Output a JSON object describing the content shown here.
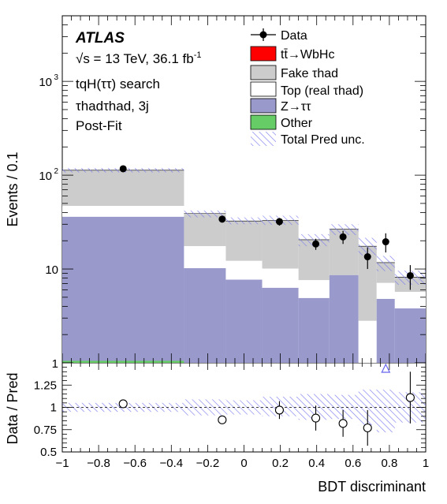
{
  "chart_data": {
    "type": "histogram",
    "experiment": "ATLAS",
    "energy_label": "√s = 13 TeV, 36.1 fb",
    "lumi_exponent": "-1",
    "analysis": "tqH(ττ) search",
    "channel": "τhadτhad, 3j",
    "fit_label": "Post-Fit",
    "ylabel": "Events / 0.1",
    "ratio_ylabel": "Data / Pred",
    "xlabel": "BDT discriminant",
    "ylim": [
      1,
      5000
    ],
    "y_log": true,
    "ratio_ylim": [
      0.5,
      1.5
    ],
    "xlim": [
      -1,
      1
    ],
    "x_ticks": [
      "−1",
      "−0.8",
      "−0.6",
      "−0.4",
      "−0.2",
      "0",
      "0.2",
      "0.4",
      "0.6",
      "0.8",
      "1"
    ],
    "y_ticks": [
      {
        "v": 1,
        "b": "1",
        "e": ""
      },
      {
        "v": 10,
        "b": "10",
        "e": ""
      },
      {
        "v": 100,
        "b": "10",
        "e": "2"
      },
      {
        "v": 1000,
        "b": "10",
        "e": "3"
      }
    ],
    "ratio_ticks": [
      "0.5",
      "0.75",
      "1",
      "1.25"
    ],
    "legend": {
      "data": "Data",
      "signal": "tt̄→WbHc",
      "fake": "Fake τhad",
      "top": "Top (real τhad)",
      "ztt": "Z→ττ",
      "other": "Other",
      "unc": "Total Pred unc."
    },
    "colors": {
      "signal": "#ff0000",
      "fake": "#cccccc",
      "top": "#ffffff",
      "ztt": "#9999cc",
      "other": "#66cc66",
      "unc": "#7777ee"
    },
    "bins": [
      {
        "lo": -1.0,
        "hi": -0.33,
        "other": 1.05,
        "ztt": 36,
        "top": 47,
        "fake": 113,
        "unc_lo": 107,
        "unc_hi": 119
      },
      {
        "lo": -0.33,
        "hi": -0.1,
        "other": 0,
        "ztt": 10.2,
        "top": 17.5,
        "fake": 39,
        "unc_lo": 35.5,
        "unc_hi": 42
      },
      {
        "lo": -0.1,
        "hi": 0.1,
        "other": 0,
        "ztt": 7.7,
        "top": 12.2,
        "fake": 32.5,
        "unc_lo": 30,
        "unc_hi": 35.5
      },
      {
        "lo": 0.1,
        "hi": 0.3,
        "other": 0,
        "ztt": 6.3,
        "top": 10.1,
        "fake": 32.8,
        "unc_lo": 29.5,
        "unc_hi": 37
      },
      {
        "lo": 0.3,
        "hi": 0.47,
        "other": 0,
        "ztt": 4.9,
        "top": 7.6,
        "fake": 20.5,
        "unc_lo": 17.5,
        "unc_hi": 23.5
      },
      {
        "lo": 0.47,
        "hi": 0.63,
        "other": 0,
        "ztt": 8.6,
        "top": 8.6,
        "fake": 26.5,
        "unc_lo": 23,
        "unc_hi": 30
      },
      {
        "lo": 0.63,
        "hi": 0.73,
        "other": 0,
        "ztt": 1,
        "top": 2.8,
        "fake": 17.5,
        "unc_lo": 14,
        "unc_hi": 21.5
      },
      {
        "lo": 0.73,
        "hi": 0.83,
        "other": 0,
        "ztt": 4.8,
        "top": 7.1,
        "fake": 11.7,
        "unc_lo": 9.5,
        "unc_hi": 13.8
      },
      {
        "lo": 0.83,
        "hi": 1.0,
        "other": 0,
        "ztt": 3.8,
        "top": 5.7,
        "fake": 8.2,
        "unc_lo": 6.8,
        "unc_hi": 9.6
      }
    ],
    "data_points": [
      {
        "x": -0.665,
        "y": 117,
        "err_lo": 0,
        "err_hi": 0
      },
      {
        "x": -0.12,
        "y": 34,
        "err_lo": 2.5,
        "err_hi": 2.5
      },
      {
        "x": 0.195,
        "y": 32,
        "err_lo": 3,
        "err_hi": 3
      },
      {
        "x": 0.395,
        "y": 18.5,
        "err_lo": 2.5,
        "err_hi": 2.5
      },
      {
        "x": 0.545,
        "y": 22,
        "err_lo": 3.5,
        "err_hi": 3.5
      },
      {
        "x": 0.68,
        "y": 13.5,
        "err_lo": 3.5,
        "err_hi": 3.5
      },
      {
        "x": 0.78,
        "y": 19.5,
        "err_lo": 4.5,
        "err_hi": 4.5
      },
      {
        "x": 0.915,
        "y": 8.5,
        "err_lo": 2.5,
        "err_hi": 2.5
      }
    ],
    "ratio_points": [
      {
        "x": -0.665,
        "y": 1.04,
        "err": 0
      },
      {
        "x": -0.12,
        "y": 0.86,
        "err": 0.045
      },
      {
        "x": 0.195,
        "y": 0.97,
        "err": 0.1
      },
      {
        "x": 0.395,
        "y": 0.88,
        "err": 0.14
      },
      {
        "x": 0.545,
        "y": 0.82,
        "err": 0.15
      },
      {
        "x": 0.68,
        "y": 0.77,
        "err": 0.2
      },
      {
        "x": 0.915,
        "y": 1.11,
        "err": 0.29
      }
    ],
    "ratio_arrow_x": 0.78,
    "ratio_band": [
      {
        "lo": -1.0,
        "hi": -0.33,
        "dn": 0.95,
        "up": 1.05
      },
      {
        "lo": -0.33,
        "hi": -0.1,
        "dn": 0.91,
        "up": 1.09
      },
      {
        "lo": -0.1,
        "hi": 0.1,
        "dn": 0.92,
        "up": 1.08
      },
      {
        "lo": 0.1,
        "hi": 0.3,
        "dn": 0.9,
        "up": 1.12
      },
      {
        "lo": 0.3,
        "hi": 0.47,
        "dn": 0.86,
        "up": 1.15
      },
      {
        "lo": 0.47,
        "hi": 0.63,
        "dn": 0.87,
        "up": 1.14
      },
      {
        "lo": 0.63,
        "hi": 0.73,
        "dn": 0.8,
        "up": 1.2
      },
      {
        "lo": 0.73,
        "hi": 0.83,
        "dn": 0.72,
        "up": 1.2
      },
      {
        "lo": 0.83,
        "hi": 1.0,
        "dn": 0.83,
        "up": 1.17
      }
    ]
  }
}
